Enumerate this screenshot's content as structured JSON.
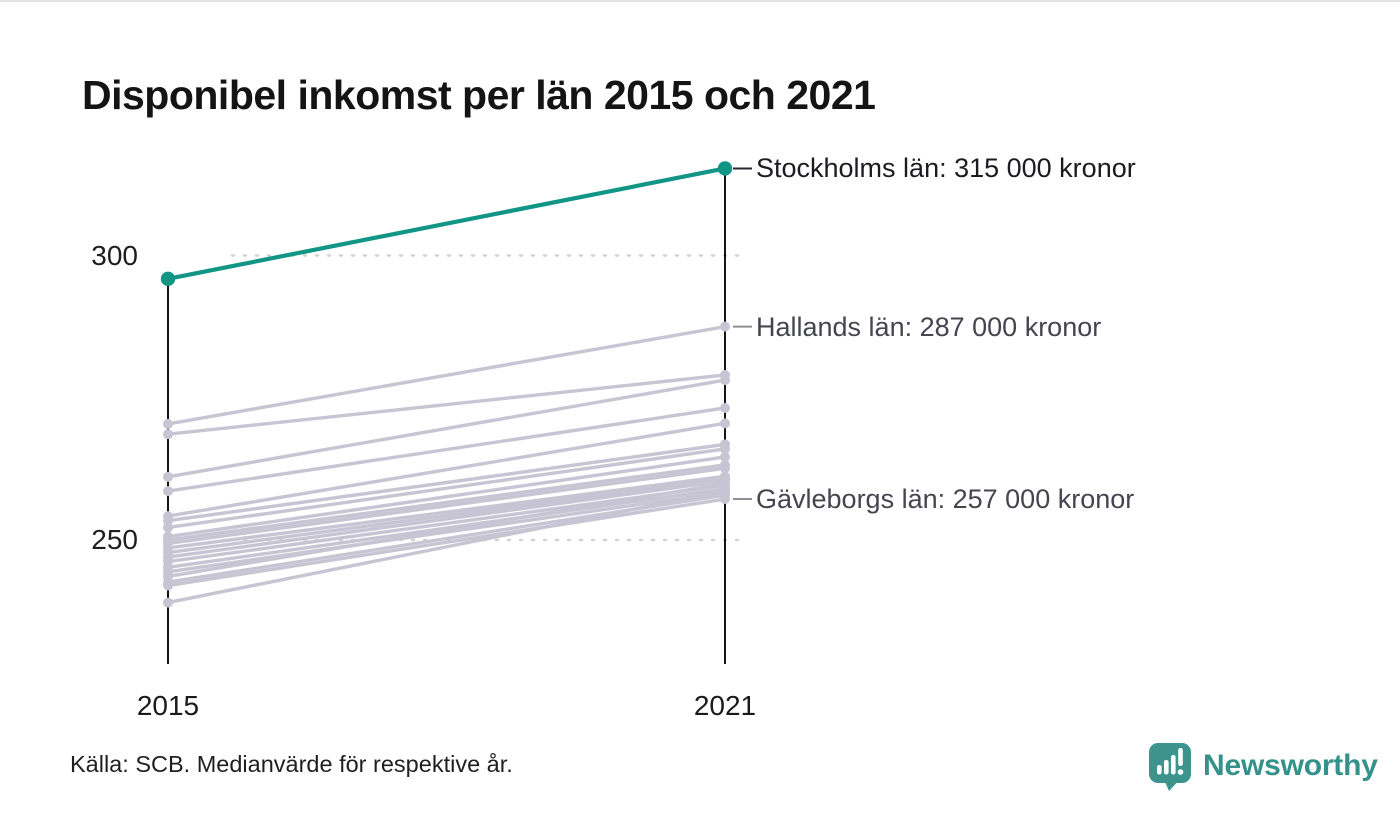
{
  "header": {
    "title": "Disponibel inkomst per län 2015 och 2021"
  },
  "chart_data": {
    "type": "line",
    "variant": "slope",
    "title": "Disponibel inkomst per län 2015 och 2021",
    "x": [
      2015,
      2021
    ],
    "x_labels": [
      "2015",
      "2021"
    ],
    "yticks": [
      300,
      250
    ],
    "ylim": [
      230,
      318
    ],
    "grid": "dotted horizontal at yticks",
    "unit": "tusen kronor",
    "colors": {
      "highlight": "#119685",
      "default_line": "#c7c5d3",
      "grid": "#d2d2d2",
      "axis": "#141414"
    },
    "series": [
      {
        "name": "Stockholms län",
        "values": [
          295.9,
          315.3
        ],
        "highlight": true
      },
      {
        "name": "Hallands län",
        "values": [
          270.4,
          287.5
        ],
        "highlight": false
      },
      {
        "name": "",
        "values": [
          268.6,
          279.0
        ],
        "highlight": false
      },
      {
        "name": "",
        "values": [
          261.1,
          278.1
        ],
        "highlight": false
      },
      {
        "name": "",
        "values": [
          258.6,
          273.2
        ],
        "highlight": false
      },
      {
        "name": "",
        "values": [
          254.2,
          270.5
        ],
        "highlight": false
      },
      {
        "name": "",
        "values": [
          253.4,
          266.8
        ],
        "highlight": false
      },
      {
        "name": "",
        "values": [
          252.2,
          266.0
        ],
        "highlight": false
      },
      {
        "name": "",
        "values": [
          250.6,
          264.6
        ],
        "highlight": false
      },
      {
        "name": "",
        "values": [
          250.0,
          263.2
        ],
        "highlight": false
      },
      {
        "name": "",
        "values": [
          249.4,
          262.6
        ],
        "highlight": false
      },
      {
        "name": "",
        "values": [
          248.6,
          261.2
        ],
        "highlight": false
      },
      {
        "name": "",
        "values": [
          247.8,
          260.8
        ],
        "highlight": false
      },
      {
        "name": "",
        "values": [
          247.0,
          260.4
        ],
        "highlight": false
      },
      {
        "name": "",
        "values": [
          246.2,
          259.6
        ],
        "highlight": false
      },
      {
        "name": "",
        "values": [
          245.2,
          259.0
        ],
        "highlight": false
      },
      {
        "name": "",
        "values": [
          244.4,
          258.4
        ],
        "highlight": false
      },
      {
        "name": "",
        "values": [
          243.6,
          259.9
        ],
        "highlight": false
      },
      {
        "name": "",
        "values": [
          242.6,
          257.9
        ],
        "highlight": false
      },
      {
        "name": "Gävleborgs län",
        "values": [
          242.0,
          257.2
        ],
        "highlight": false
      },
      {
        "name": "",
        "values": [
          239.0,
          258.6
        ],
        "highlight": false
      }
    ],
    "annotations": [
      {
        "id": "stockholm",
        "series_index": 0,
        "text": "Stockholms län: 315 000 kronor",
        "style": "primary",
        "connector_color": "#2a2a30"
      },
      {
        "id": "halland",
        "series_index": 1,
        "text": "Hallands län: 287 000 kronor",
        "style": "secondary",
        "connector_color": "#8f8f97"
      },
      {
        "id": "gavleborg",
        "series_index": 19,
        "text": "Gävleborgs län: 257 000 kronor",
        "style": "secondary",
        "connector_color": "#8f8f97"
      }
    ]
  },
  "footer": {
    "source": "Källa: SCB. Medianvärde för respektive år."
  },
  "branding": {
    "logo_text": "Newsworthy",
    "color": "#3d948d",
    "text_color": "#34928a"
  }
}
